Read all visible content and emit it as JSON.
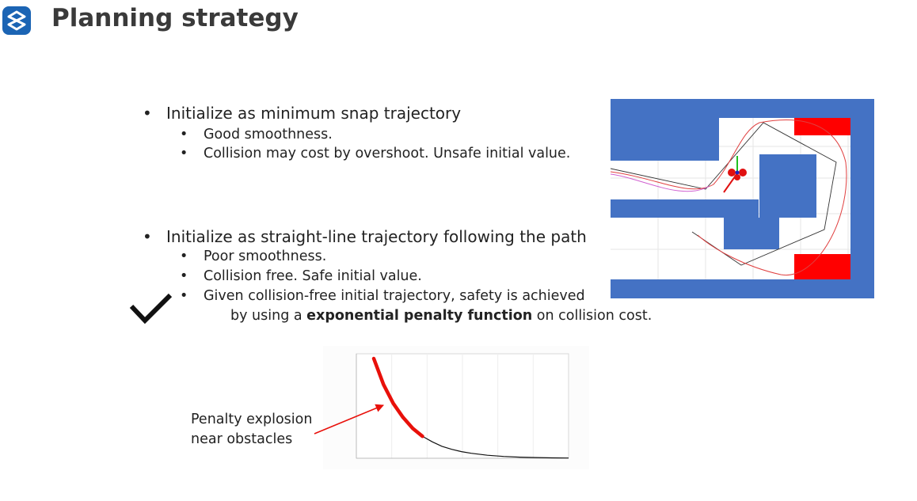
{
  "header": {
    "logo_icon": "s-logo-icon",
    "title": "Planning strategy"
  },
  "bullets": [
    {
      "text": "Initialize as minimum snap trajectory",
      "sub": [
        "Good smoothness.",
        "Collision may cost by overshoot. Unsafe initial value."
      ]
    },
    {
      "text": "Initialize as straight-line trajectory following the path",
      "sub": [
        "Poor smoothness.",
        "Collision free. Safe initial value.",
        "Given collision-free initial trajectory, safety is achieved"
      ],
      "continuation_pre": "by using a ",
      "continuation_bold": "exponential penalty function",
      "continuation_post": " on collision cost."
    }
  ],
  "bullet_char": "•",
  "check_icon": "checkmark-icon",
  "annotation": {
    "line1": "Penalty explosion",
    "line2": "near obstacles"
  },
  "colors": {
    "obstacle_blue": "#4472c4",
    "obstacle_red": "#ff0000",
    "curve_red": "#e8100a",
    "logo_blue": "#1b64b4"
  },
  "chart_data": {
    "type": "line",
    "title": "",
    "xlabel": "",
    "ylabel": "",
    "series": [
      {
        "x": [
          0,
          0.3,
          0.6,
          0.9,
          1.2,
          1.5,
          1.8,
          2.1,
          2.4,
          2.7,
          3.0,
          3.5,
          4.0,
          4.5,
          5.0,
          5.5,
          6.0
        ],
        "values": [
          1.0,
          0.74,
          0.55,
          0.41,
          0.3,
          0.22,
          0.165,
          0.12,
          0.09,
          0.067,
          0.05,
          0.03,
          0.018,
          0.011,
          0.007,
          0.004,
          0.0025
        ]
      }
    ],
    "highlighted_range": [
      0,
      1.5
    ],
    "grid": true
  }
}
